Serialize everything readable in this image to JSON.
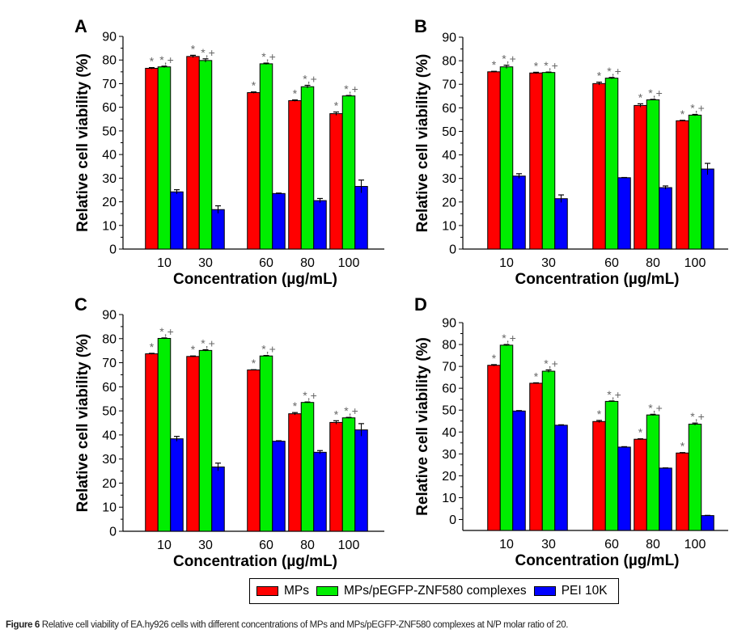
{
  "chart_data": [
    {
      "type": "bar",
      "panel": "A",
      "title": "",
      "xlabel": "Concentration (µg/mL)",
      "ylabel": "Relative cell viability (%)",
      "categories": [
        "10",
        "30",
        "60",
        "80",
        "100"
      ],
      "ylim": [
        0,
        90
      ],
      "yticks": [
        0,
        10,
        20,
        30,
        40,
        50,
        60,
        70,
        80,
        90
      ],
      "grid": false,
      "series": [
        {
          "name": "MPs",
          "values": [
            76.5,
            81.5,
            66.2,
            62.8,
            57.3
          ],
          "errors": [
            0.3,
            0.5,
            0.3,
            0.3,
            0.7
          ],
          "annotations": [
            "*",
            "*",
            "*",
            "*",
            "*"
          ]
        },
        {
          "name": "MPs/pEGFP-ZNF580 complexes",
          "values": [
            77.1,
            79.8,
            78.4,
            68.7,
            64.8
          ],
          "errors": [
            0.3,
            0.7,
            0.3,
            0.6,
            0.2
          ],
          "annotations": [
            "*,+",
            "*,+",
            "*,+",
            "*,+",
            "*,+"
          ]
        },
        {
          "name": "PEI 10K",
          "values": [
            24.2,
            16.7,
            23.5,
            20.5,
            26.5
          ],
          "errors": [
            0.9,
            1.6,
            0.2,
            0.9,
            2.7
          ],
          "annotations": [
            "",
            "",
            "",
            "",
            ""
          ]
        }
      ]
    },
    {
      "type": "bar",
      "panel": "B",
      "title": "",
      "xlabel": "Concentration (µg/mL)",
      "ylabel": "Relative cell viability (%)",
      "categories": [
        "10",
        "30",
        "60",
        "80",
        "100"
      ],
      "ylim": [
        0,
        90
      ],
      "yticks": [
        0,
        10,
        20,
        30,
        40,
        50,
        60,
        70,
        80,
        90
      ],
      "grid": false,
      "series": [
        {
          "name": "MPs",
          "values": [
            75.3,
            74.8,
            70.3,
            61.0,
            54.5
          ],
          "errors": [
            0.2,
            0.3,
            0.6,
            0.7,
            0.2
          ],
          "annotations": [
            "*",
            "*",
            "*",
            "*",
            "*"
          ]
        },
        {
          "name": "MPs/pEGFP-ZNF580 complexes",
          "values": [
            77.4,
            75.0,
            72.6,
            63.4,
            56.9
          ],
          "errors": [
            0.7,
            0.2,
            0.3,
            0.2,
            0.3
          ],
          "annotations": [
            "*,+",
            "*,+",
            "*,+",
            "*,+",
            "*,+"
          ]
        },
        {
          "name": "PEI 10K",
          "values": [
            31.0,
            21.4,
            30.3,
            26.1,
            34.0
          ],
          "errors": [
            1.0,
            1.6,
            0.1,
            0.7,
            2.4
          ],
          "annotations": [
            "",
            "",
            "",
            "",
            ""
          ]
        }
      ]
    },
    {
      "type": "bar",
      "panel": "C",
      "title": "",
      "xlabel": "Concentration (µg/mL)",
      "ylabel": "Relative cell viability (%)",
      "categories": [
        "10",
        "30",
        "60",
        "80",
        "100"
      ],
      "ylim": [
        0,
        90
      ],
      "yticks": [
        0,
        10,
        20,
        30,
        40,
        50,
        60,
        70,
        80,
        90
      ],
      "grid": false,
      "series": [
        {
          "name": "MPs",
          "values": [
            73.7,
            72.6,
            67.0,
            48.8,
            45.2
          ],
          "errors": [
            0.2,
            0.2,
            0.1,
            0.5,
            0.7
          ],
          "annotations": [
            "*",
            "*",
            "*",
            "*",
            "*"
          ]
        },
        {
          "name": "MPs/pEGFP-ZNF580 complexes",
          "values": [
            80.1,
            75.1,
            72.8,
            53.5,
            47.1
          ],
          "errors": [
            0.2,
            0.3,
            0.2,
            0.2,
            0.2
          ],
          "annotations": [
            "*,+",
            "*,+",
            "*,+",
            "*,+",
            "*,+"
          ]
        },
        {
          "name": "PEI 10K",
          "values": [
            38.4,
            26.7,
            37.4,
            32.8,
            42.1
          ],
          "errors": [
            1.0,
            1.6,
            0.2,
            0.7,
            2.6
          ],
          "annotations": [
            "",
            "",
            "",
            "",
            ""
          ]
        }
      ]
    },
    {
      "type": "bar",
      "panel": "D",
      "title": "",
      "xlabel": "Concentration (µg/mL)",
      "ylabel": "Relative cell viability (%)",
      "categories": [
        "10",
        "30",
        "60",
        "80",
        "100"
      ],
      "ylim": [
        -5,
        90
      ],
      "yticks": [
        0,
        10,
        20,
        30,
        40,
        50,
        60,
        70,
        80,
        90
      ],
      "grid": false,
      "series": [
        {
          "name": "MPs",
          "values": [
            70.5,
            62.3,
            44.8,
            36.7,
            30.4
          ],
          "errors": [
            0.3,
            0.2,
            0.5,
            0.2,
            0.2
          ],
          "annotations": [
            "*",
            "*",
            "*",
            "*",
            "*"
          ]
        },
        {
          "name": "MPs/pEGFP-ZNF580 complexes",
          "values": [
            79.7,
            67.8,
            54.0,
            47.8,
            43.6
          ],
          "errors": [
            0.3,
            0.6,
            0.2,
            0.3,
            0.5
          ],
          "annotations": [
            "*,+",
            "*,+",
            "*,+",
            "*,+",
            "*,+"
          ]
        },
        {
          "name": "PEI 10K",
          "values": [
            49.6,
            43.1,
            33.1,
            23.5,
            1.8
          ],
          "errors": [
            0.2,
            0.2,
            0.2,
            0.1,
            0.1
          ],
          "annotations": [
            "",
            "",
            "",
            "",
            ""
          ]
        }
      ]
    }
  ],
  "series_colors": {
    "MPs": "#ff0000",
    "MPs/pEGFP-ZNF580 complexes": "#00ee00",
    "PEI 10K": "#0000ff"
  },
  "legend": {
    "position": "bottom-center",
    "items": [
      {
        "label": "MPs",
        "color": "#ff0000"
      },
      {
        "label": "MPs/pEGFP-ZNF580 complexes",
        "color": "#00ee00"
      },
      {
        "label": "PEI 10K",
        "color": "#0000ff"
      }
    ]
  },
  "caption": {
    "label": "Figure 6",
    "text": "Relative cell viability of EA.hy926 cells with different concentrations of MPs and MPs/pEGFP-ZNF580 complexes at N/P molar ratio of 20."
  }
}
